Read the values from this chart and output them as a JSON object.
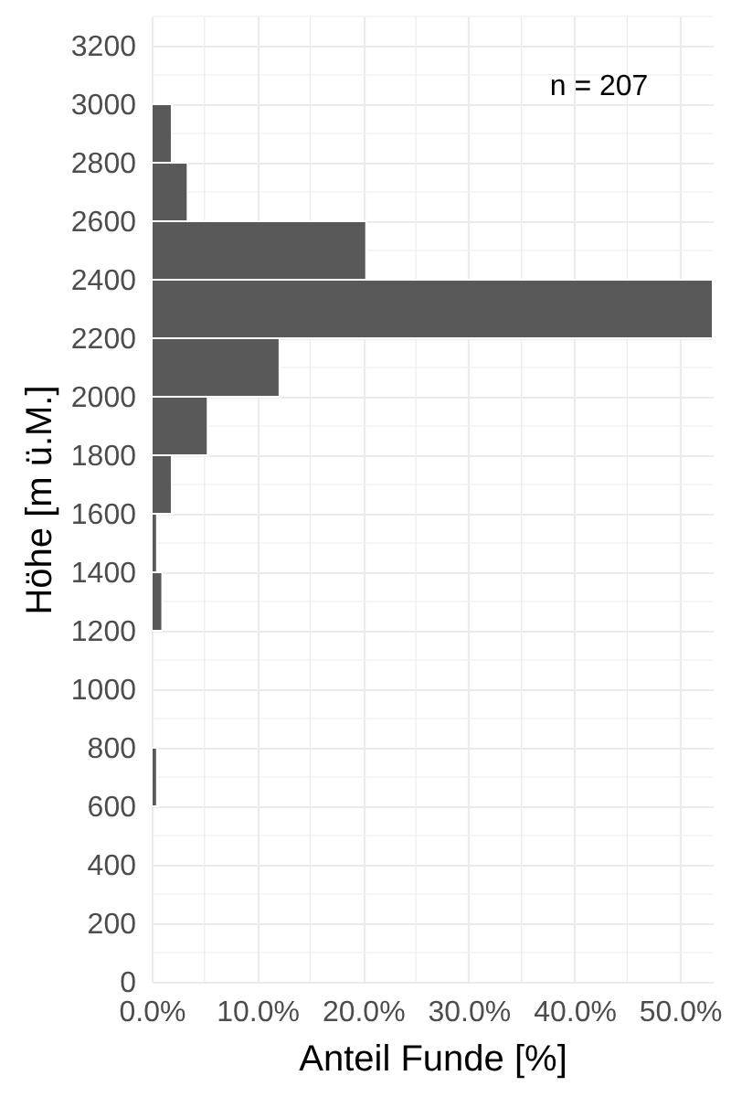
{
  "chart_data": {
    "type": "histogram",
    "orientation": "horizontal",
    "xlabel": "Anteil Funde [%]",
    "ylabel": "Höhe [m ü.M.]",
    "annotations": [
      "n = 207"
    ],
    "bins": [
      600,
      800,
      1000,
      1200,
      1400,
      1600,
      1800,
      2000,
      2200,
      2400,
      2600,
      2800,
      3000
    ],
    "values": [
      0.5,
      0,
      0,
      1.0,
      0.5,
      1.9,
      5.3,
      12.1,
      53.1,
      20.3,
      3.4,
      1.9
    ],
    "color": "#595959",
    "xlim": [
      0,
      53.1
    ],
    "ylim": [
      0,
      3300
    ],
    "xticks": [
      {
        "value": 0,
        "label": "0.0%"
      },
      {
        "value": 10,
        "label": "10.0%"
      },
      {
        "value": 20,
        "label": "20.0%"
      },
      {
        "value": 30,
        "label": "30.0%"
      },
      {
        "value": 40,
        "label": "40.0%"
      },
      {
        "value": 50,
        "label": "50.0%"
      }
    ],
    "yticks": [
      0,
      200,
      400,
      600,
      800,
      1000,
      1200,
      1400,
      1600,
      1800,
      2000,
      2200,
      2400,
      2600,
      2800,
      3000,
      3200
    ],
    "grid": true
  }
}
